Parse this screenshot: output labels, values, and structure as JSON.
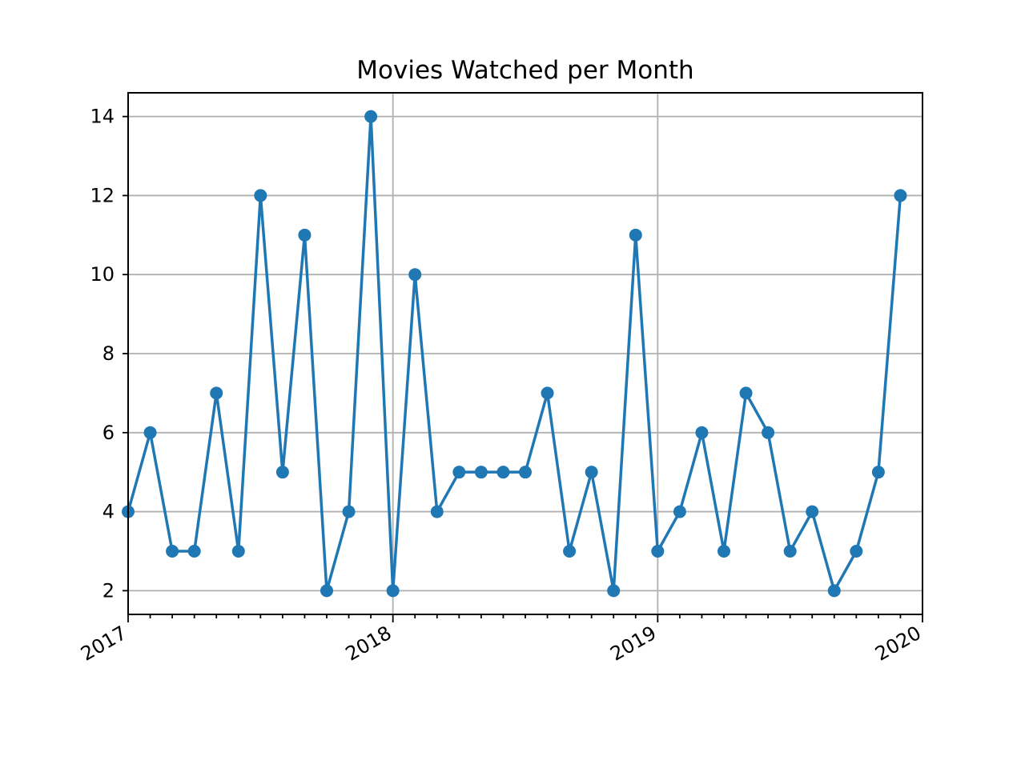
{
  "chart_data": {
    "type": "line",
    "title": "Movies Watched per Month",
    "xlabel": "",
    "ylabel": "",
    "x_tick_labels": [
      "2017",
      "2018",
      "2019",
      "2020"
    ],
    "y_ticks": [
      2,
      4,
      6,
      8,
      10,
      12,
      14
    ],
    "x_range": [
      "2017-01",
      "2020-01"
    ],
    "ylim": [
      1.4,
      14.6
    ],
    "grid": true,
    "color": "#1f77b4",
    "marker": "circle",
    "series": [
      {
        "x": [
          "2017-01",
          "2017-02",
          "2017-03",
          "2017-04",
          "2017-05",
          "2017-06",
          "2017-07",
          "2017-08",
          "2017-09",
          "2017-10",
          "2017-11",
          "2017-12",
          "2018-01",
          "2018-02",
          "2018-03",
          "2018-04",
          "2018-05",
          "2018-06",
          "2018-07",
          "2018-08",
          "2018-09",
          "2018-10",
          "2018-11",
          "2018-12",
          "2019-01",
          "2019-02",
          "2019-03",
          "2019-04",
          "2019-05",
          "2019-06",
          "2019-07",
          "2019-08",
          "2019-09",
          "2019-10",
          "2019-11",
          "2019-12"
        ],
        "values": [
          4,
          6,
          3,
          3,
          7,
          3,
          12,
          5,
          11,
          2,
          4,
          14,
          2,
          10,
          4,
          5,
          5,
          5,
          5,
          7,
          3,
          5,
          2,
          11,
          3,
          4,
          6,
          3,
          7,
          6,
          3,
          4,
          2,
          3,
          5,
          12
        ]
      }
    ]
  }
}
